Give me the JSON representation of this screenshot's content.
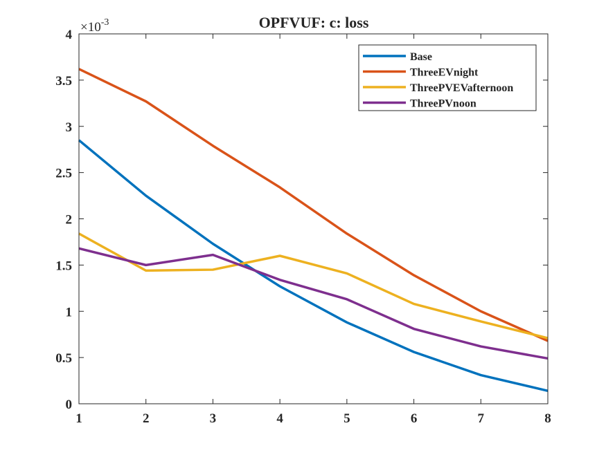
{
  "chart_data": {
    "type": "line",
    "title": "OPFVUF: c: loss",
    "xlabel": "",
    "ylabel": "",
    "exponent_base": "×10",
    "exponent_power": "-3",
    "x": [
      1,
      2,
      3,
      4,
      5,
      6,
      7,
      8
    ],
    "xlim": [
      1,
      8
    ],
    "ylim": [
      0,
      4
    ],
    "xticks": [
      "1",
      "2",
      "3",
      "4",
      "5",
      "6",
      "7",
      "8"
    ],
    "yticks": [
      "0",
      "0.5",
      "1",
      "1.5",
      "2",
      "2.5",
      "3",
      "3.5",
      "4"
    ],
    "ytick_values": [
      0,
      0.5,
      1,
      1.5,
      2,
      2.5,
      3,
      3.5,
      4
    ],
    "grid": false,
    "legend_position": "top-right",
    "series": [
      {
        "name": "Base",
        "color": "#0072BD",
        "values": [
          2.85,
          2.25,
          1.73,
          1.27,
          0.88,
          0.56,
          0.31,
          0.14
        ]
      },
      {
        "name": "ThreeEVnight",
        "color": "#D95319",
        "values": [
          3.62,
          3.27,
          2.79,
          2.34,
          1.84,
          1.39,
          1.0,
          0.68
        ]
      },
      {
        "name": "ThreePVEVafternoon",
        "color": "#EDB120",
        "values": [
          1.84,
          1.44,
          1.45,
          1.6,
          1.41,
          1.08,
          0.89,
          0.71
        ]
      },
      {
        "name": "ThreePVnoon",
        "color": "#7E2F8E",
        "values": [
          1.68,
          1.5,
          1.61,
          1.34,
          1.13,
          0.81,
          0.62,
          0.49
        ]
      }
    ]
  }
}
